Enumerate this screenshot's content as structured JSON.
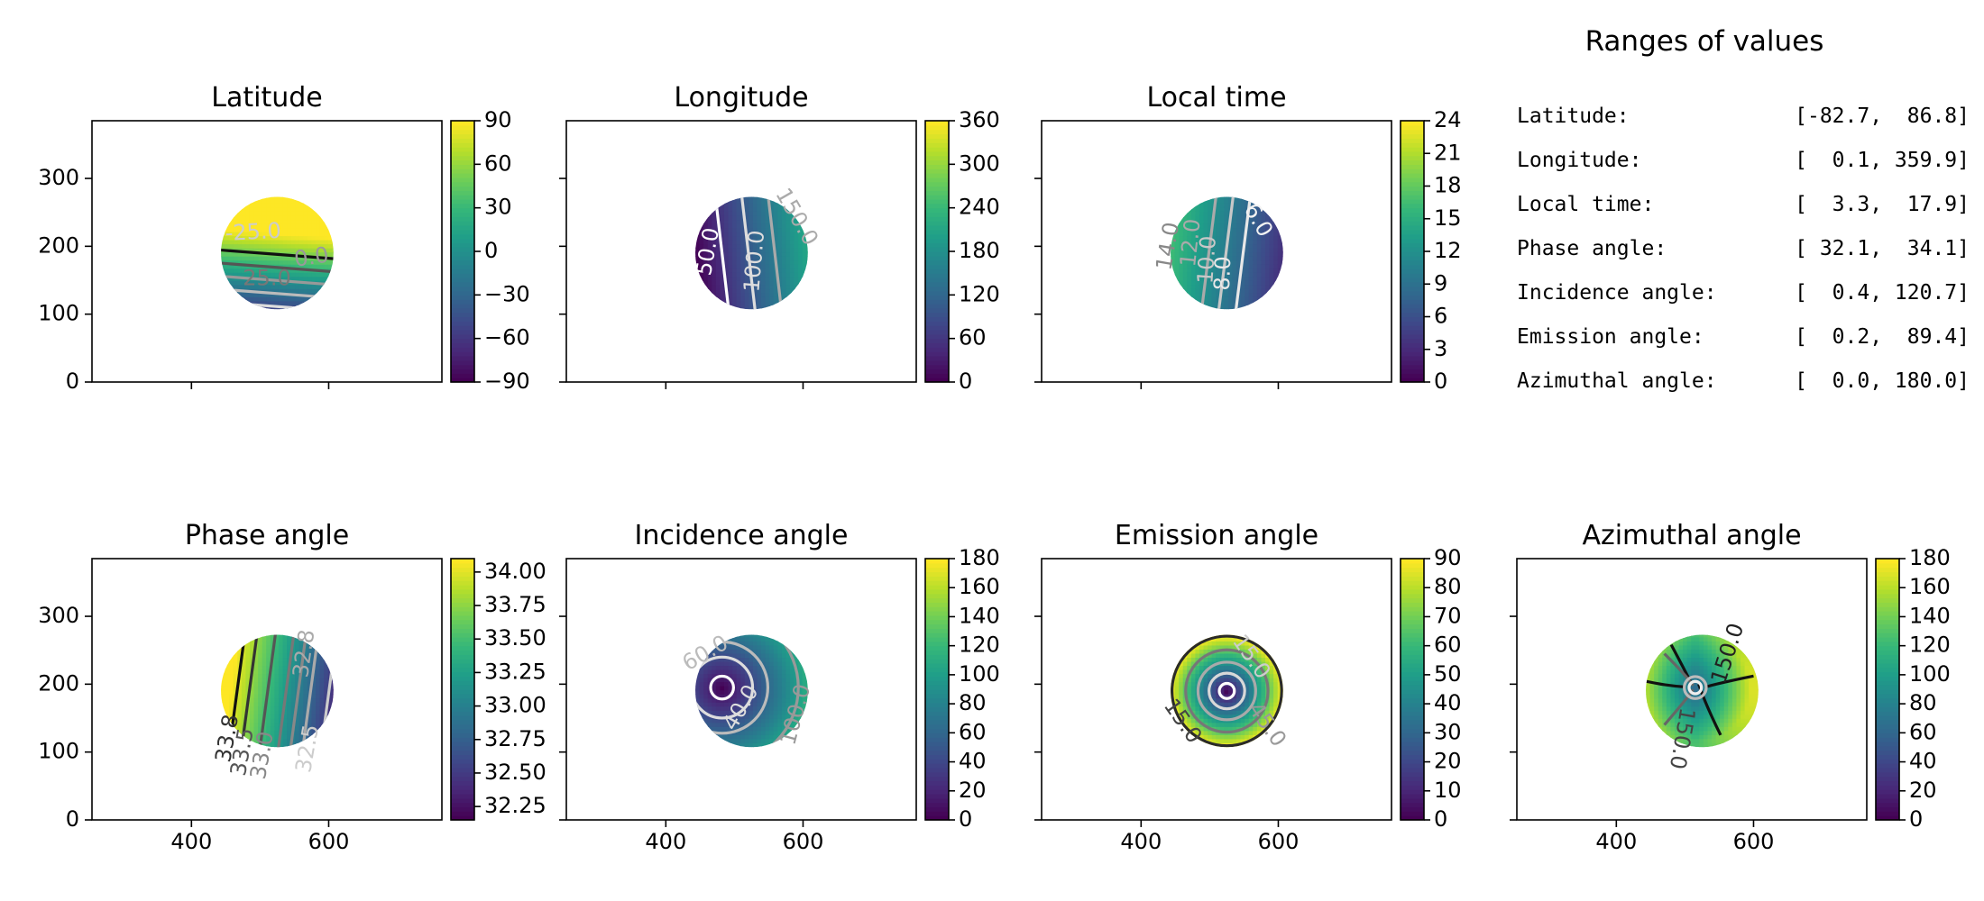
{
  "chart_data": [
    {
      "type": "heatmap",
      "title": "Latitude",
      "xlim": [
        255,
        765
      ],
      "ylim": [
        0,
        385
      ],
      "yticks": [
        0,
        100,
        200,
        300
      ],
      "xticks": [
        400,
        600
      ],
      "show_xticklabels": false,
      "show_yticklabels": true,
      "colorbar": {
        "min": -90,
        "max": 90,
        "ticks": [
          "90",
          "60",
          "30",
          "0",
          "−30",
          "−60",
          "−90"
        ],
        "tick_values": [
          90,
          60,
          30,
          0,
          -30,
          -60,
          -90
        ]
      },
      "disk": {
        "cx": 525,
        "cy": 190,
        "r": 82
      },
      "field": {
        "kind": "linear",
        "a": 0.1,
        "b": 1.3,
        "c": -247
      },
      "contours": [
        {
          "kind": "line",
          "level": 50,
          "color": "#111111",
          "label": ""
        },
        {
          "kind": "line",
          "level": 25,
          "color": "#555555",
          "label": ""
        },
        {
          "kind": "line",
          "level": 0,
          "color": "#999999",
          "label": "0.0"
        },
        {
          "kind": "line",
          "level": -25,
          "color": "#bbbbbb",
          "label": "-25.0"
        },
        {
          "kind": "line",
          "level": -50,
          "color": "#dddddd",
          "label": ""
        }
      ],
      "contour_labels": [
        {
          "text": "-25.0",
          "x": 490,
          "y": 220,
          "rot": -3,
          "color": "#cccccc"
        },
        {
          "text": "0.0",
          "x": 575,
          "y": 183,
          "rot": -8,
          "color": "#9a9a9a"
        },
        {
          "text": "25.0",
          "x": 510,
          "y": 152,
          "rot": 0,
          "color": "#777777"
        }
      ]
    },
    {
      "type": "heatmap",
      "title": "Longitude",
      "xlim": [
        255,
        765
      ],
      "ylim": [
        0,
        385
      ],
      "yticks": [
        0,
        100,
        200,
        300
      ],
      "xticks": [
        400,
        600
      ],
      "show_xticklabels": false,
      "show_yticklabels": false,
      "colorbar": {
        "min": 0,
        "max": 360,
        "ticks": [
          "360",
          "300",
          "240",
          "180",
          "120",
          "60",
          "0"
        ],
        "tick_values": [
          360,
          300,
          240,
          180,
          120,
          60,
          0
        ]
      },
      "disk": {
        "cx": 525,
        "cy": 190,
        "r": 82
      },
      "field": {
        "kind": "linear",
        "a": 1.3,
        "b": 0.15,
        "c": -605
      },
      "contours": [
        {
          "kind": "line",
          "level": 50,
          "color": "#ffffff",
          "label": "50.0"
        },
        {
          "kind": "line",
          "level": 100,
          "color": "#dddddd",
          "label": "100.0"
        },
        {
          "kind": "line",
          "level": 150,
          "color": "#aaaaaa",
          "label": "150.0"
        }
      ],
      "contour_labels": [
        {
          "text": "50.0",
          "x": 462,
          "y": 192,
          "rot": -80,
          "color": "#ffffff"
        },
        {
          "text": "100.0",
          "x": 530,
          "y": 178,
          "rot": -85,
          "color": "#dddddd"
        },
        {
          "text": "150.0",
          "x": 590,
          "y": 243,
          "rot": 60,
          "color": "#aaaaaa"
        }
      ]
    },
    {
      "type": "heatmap",
      "title": "Local time",
      "xlim": [
        255,
        765
      ],
      "ylim": [
        0,
        385
      ],
      "yticks": [
        0,
        100,
        200,
        300
      ],
      "xticks": [
        400,
        600
      ],
      "show_xticklabels": false,
      "show_yticklabels": false,
      "colorbar": {
        "min": 0,
        "max": 24,
        "ticks": [
          "24",
          "21",
          "18",
          "15",
          "12",
          "9",
          "6",
          "3",
          "0"
        ],
        "tick_values": [
          24,
          21,
          18,
          15,
          12,
          9,
          6,
          3,
          0
        ]
      },
      "disk": {
        "cx": 525,
        "cy": 190,
        "r": 82
      },
      "field": {
        "kind": "linear",
        "a": -0.08,
        "b": 0.01,
        "c": 50
      },
      "contours": [
        {
          "kind": "line",
          "level": 12,
          "color": "#aaaaaa",
          "label": "12.0"
        },
        {
          "kind": "line",
          "level": 10,
          "color": "#c8c8c8",
          "label": "10.0"
        },
        {
          "kind": "line",
          "level": 8,
          "color": "#e8e8e8",
          "label": "8.0"
        }
      ],
      "contour_labels": [
        {
          "text": "14.0",
          "x": 440,
          "y": 200,
          "rot": -80,
          "color": "#888888"
        },
        {
          "text": "12.0",
          "x": 473,
          "y": 205,
          "rot": -84,
          "color": "#aaaaaa"
        },
        {
          "text": "10.0",
          "x": 497,
          "y": 180,
          "rot": -86,
          "color": "#c8c8c8"
        },
        {
          "text": "8.0",
          "x": 520,
          "y": 160,
          "rot": -88,
          "color": "#e8e8e8"
        },
        {
          "text": "6.0",
          "x": 570,
          "y": 238,
          "rot": 60,
          "color": "#f2f2f2"
        }
      ]
    },
    null,
    {
      "type": "heatmap",
      "title": "Phase angle",
      "xlim": [
        255,
        765
      ],
      "ylim": [
        0,
        385
      ],
      "yticks": [
        0,
        100,
        200,
        300
      ],
      "xticks": [
        400,
        600
      ],
      "show_xticklabels": true,
      "show_yticklabels": true,
      "colorbar": {
        "min": 32.15,
        "max": 34.1,
        "ticks": [
          "34.00",
          "33.75",
          "33.50",
          "33.25",
          "33.00",
          "32.75",
          "32.50",
          "32.25"
        ],
        "tick_values": [
          34.0,
          33.75,
          33.5,
          33.25,
          33.0,
          32.75,
          32.5,
          32.25
        ]
      },
      "disk": {
        "cx": 525,
        "cy": 190,
        "r": 82
      },
      "field": {
        "kind": "linear",
        "a": -0.0112,
        "b": 0.0015,
        "c": 38.94
      },
      "contours": [
        {
          "kind": "line",
          "level": 34.0,
          "color": "#111111",
          "label": ""
        },
        {
          "kind": "line",
          "level": 33.8,
          "color": "#333333",
          "label": "33.8"
        },
        {
          "kind": "line",
          "level": 33.5,
          "color": "#555555",
          "label": "33.5"
        },
        {
          "kind": "line",
          "level": 33.2,
          "color": "#777777",
          "label": ""
        },
        {
          "kind": "line",
          "level": 33.0,
          "color": "#888888",
          "label": "33.0"
        },
        {
          "kind": "line",
          "level": 32.8,
          "color": "#aaaaaa",
          "label": "32.8"
        },
        {
          "kind": "line",
          "level": 32.5,
          "color": "#cccccc",
          "label": "32.5"
        }
      ],
      "contour_labels": [
        {
          "text": "33.8",
          "x": 453,
          "y": 120,
          "rot": -80,
          "color": "#333333"
        },
        {
          "text": "33.5",
          "x": 475,
          "y": 100,
          "rot": -80,
          "color": "#555555"
        },
        {
          "text": "33.0",
          "x": 504,
          "y": 95,
          "rot": -80,
          "color": "#888888"
        },
        {
          "text": "32.8",
          "x": 565,
          "y": 245,
          "rot": -82,
          "color": "#aaaaaa"
        },
        {
          "text": "32.5",
          "x": 570,
          "y": 105,
          "rot": -80,
          "color": "#cccccc"
        }
      ]
    },
    {
      "type": "heatmap",
      "title": "Incidence angle",
      "xlim": [
        255,
        765
      ],
      "ylim": [
        0,
        385
      ],
      "yticks": [
        0,
        100,
        200,
        300
      ],
      "xticks": [
        400,
        600
      ],
      "show_xticklabels": true,
      "show_yticklabels": false,
      "colorbar": {
        "min": 0,
        "max": 180,
        "ticks": [
          "180",
          "160",
          "140",
          "120",
          "100",
          "80",
          "60",
          "40",
          "20",
          "0"
        ],
        "tick_values": [
          180,
          160,
          140,
          120,
          100,
          80,
          60,
          40,
          20,
          0
        ]
      },
      "disk": {
        "cx": 525,
        "cy": 190,
        "r": 82
      },
      "field": {
        "kind": "radial",
        "cx": 482,
        "cy": 195,
        "scale": 0.9,
        "offset": 0
      },
      "contours": [
        {
          "kind": "line",
          "level": 15,
          "color": "#ffffff",
          "label": ""
        },
        {
          "kind": "line",
          "level": 40,
          "color": "#dddddd",
          "label": "40.0"
        },
        {
          "kind": "line",
          "level": 60,
          "color": "#bbbbbb",
          "label": "60.0"
        },
        {
          "kind": "line",
          "level": 100,
          "color": "#999999",
          "label": "100.0"
        }
      ],
      "contour_labels": [
        {
          "text": "60.0",
          "x": 458,
          "y": 245,
          "rot": -30,
          "color": "#bbbbbb"
        },
        {
          "text": "40.0",
          "x": 510,
          "y": 165,
          "rot": -60,
          "color": "#dddddd"
        },
        {
          "text": "100.0",
          "x": 590,
          "y": 155,
          "rot": -75,
          "color": "#999999"
        }
      ]
    },
    {
      "type": "heatmap",
      "title": "Emission angle",
      "xlim": [
        255,
        765
      ],
      "ylim": [
        0,
        385
      ],
      "yticks": [
        0,
        100,
        200,
        300
      ],
      "xticks": [
        400,
        600
      ],
      "show_xticklabels": true,
      "show_yticklabels": false,
      "colorbar": {
        "min": 0,
        "max": 90,
        "ticks": [
          "90",
          "80",
          "70",
          "60",
          "50",
          "40",
          "30",
          "20",
          "10",
          "0"
        ],
        "tick_values": [
          90,
          80,
          70,
          60,
          50,
          40,
          30,
          20,
          10,
          0
        ]
      },
      "disk": {
        "cx": 525,
        "cy": 190,
        "r": 82
      },
      "field": {
        "kind": "radial",
        "cx": 525,
        "cy": 190,
        "scale": 1.1,
        "offset": 0
      },
      "contours": [
        {
          "kind": "circle",
          "cx": 525,
          "cy": 190,
          "r": 80,
          "color": "#2a2a2a",
          "label": ""
        },
        {
          "kind": "circle",
          "cx": 525,
          "cy": 190,
          "r": 60,
          "color": "#777777",
          "label": ""
        },
        {
          "kind": "circle",
          "cx": 525,
          "cy": 190,
          "r": 42,
          "color": "#aaaaaa",
          "label": ""
        },
        {
          "kind": "circle",
          "cx": 525,
          "cy": 190,
          "r": 26,
          "color": "#d8d8d8",
          "label": ""
        },
        {
          "kind": "circle",
          "cx": 525,
          "cy": 190,
          "r": 11,
          "color": "#ffffff",
          "label": ""
        }
      ],
      "contour_labels": [
        {
          "text": "15.0",
          "x": 560,
          "y": 240,
          "rot": 55,
          "color": "#cccccc"
        },
        {
          "text": "15.0",
          "x": 460,
          "y": 145,
          "rot": 55,
          "color": "#444444"
        },
        {
          "text": "45.0",
          "x": 583,
          "y": 140,
          "rot": 55,
          "color": "#999999"
        }
      ]
    },
    {
      "type": "heatmap",
      "title": "Azimuthal angle",
      "xlim": [
        255,
        765
      ],
      "ylim": [
        0,
        385
      ],
      "yticks": [
        0,
        100,
        200,
        300
      ],
      "xticks": [
        400,
        600
      ],
      "show_xticklabels": true,
      "show_yticklabels": false,
      "colorbar": {
        "min": 0,
        "max": 180,
        "ticks": [
          "180",
          "160",
          "140",
          "120",
          "100",
          "80",
          "60",
          "40",
          "20",
          "0"
        ],
        "tick_values": [
          180,
          160,
          140,
          120,
          100,
          80,
          60,
          40,
          20,
          0
        ]
      },
      "disk": {
        "cx": 525,
        "cy": 190,
        "r": 82
      },
      "field": {
        "kind": "azimuth",
        "cx": 515,
        "cy": 195
      },
      "contours": [
        {
          "kind": "curve",
          "points": [
            [
              440,
              205
            ],
            [
              470,
              198
            ],
            [
              500,
              196
            ]
          ],
          "color": "#111111"
        },
        {
          "kind": "curve",
          "points": [
            [
              530,
              196
            ],
            [
              560,
              204
            ],
            [
              600,
              212
            ]
          ],
          "color": "#111111"
        },
        {
          "kind": "curve",
          "points": [
            [
              480,
              258
            ],
            [
              500,
              220
            ],
            [
              510,
              200
            ]
          ],
          "color": "#111111"
        },
        {
          "kind": "curve",
          "points": [
            [
              520,
              200
            ],
            [
              530,
              170
            ],
            [
              552,
              125
            ]
          ],
          "color": "#111111"
        },
        {
          "kind": "curve",
          "points": [
            [
              470,
              245
            ],
            [
              500,
              215
            ],
            [
              512,
              198
            ]
          ],
          "color": "#666666"
        },
        {
          "kind": "curve",
          "points": [
            [
              470,
              140
            ],
            [
              500,
              175
            ],
            [
              512,
              192
            ]
          ],
          "color": "#666666"
        },
        {
          "kind": "circle",
          "cx": 515,
          "cy": 195,
          "r": 16,
          "color": "#bbbbbb",
          "label": ""
        },
        {
          "kind": "circle",
          "cx": 515,
          "cy": 195,
          "r": 9,
          "color": "#eeeeee",
          "label": ""
        }
      ],
      "contour_labels": [
        {
          "text": "150.0",
          "x": 563,
          "y": 245,
          "rot": -72,
          "color": "#222222"
        },
        {
          "text": "150.0",
          "x": 495,
          "y": 120,
          "rot": 100,
          "color": "#444444"
        }
      ]
    }
  ],
  "ranges": {
    "title": "Ranges of values",
    "rows": [
      {
        "label": "Latitude:",
        "value": "[-82.7,  86.8]"
      },
      {
        "label": "Longitude:",
        "value": "[  0.1, 359.9]"
      },
      {
        "label": "Local time:",
        "value": "[  3.3,  17.9]"
      },
      {
        "label": "Phase angle:",
        "value": "[ 32.1,  34.1]"
      },
      {
        "label": "Incidence angle:",
        "value": "[  0.4, 120.7]"
      },
      {
        "label": "Emission angle:",
        "value": "[  0.2,  89.4]"
      },
      {
        "label": "Azimuthal angle:",
        "value": "[  0.0, 180.0]"
      }
    ]
  }
}
